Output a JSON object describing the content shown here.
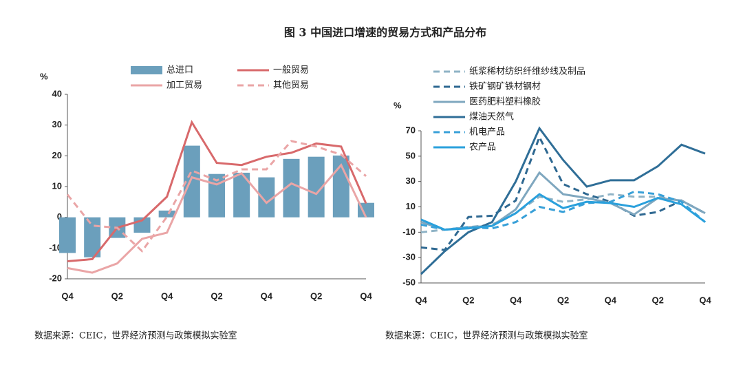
{
  "title": "图 3 中国进口增速的贸易方式和产品分布",
  "chart_data": [
    {
      "type": "bar-line",
      "unit": "%",
      "categories": [
        "Q4",
        null,
        "Q2",
        null,
        "Q4",
        null,
        "Q2",
        null,
        "Q4",
        null,
        "Q2",
        null,
        "Q4"
      ],
      "ylim": [
        -20,
        40
      ],
      "yticks": [
        -20,
        -10,
        0,
        10,
        20,
        30,
        40
      ],
      "series": [
        {
          "name": "总进口",
          "kind": "bar",
          "color": "#6b9fbc",
          "values": [
            -11.6,
            -13,
            -6.7,
            -5,
            2.2,
            23.3,
            14.1,
            14.5,
            13,
            19,
            19.7,
            20.1,
            4.7
          ]
        },
        {
          "name": "一般贸易",
          "kind": "line",
          "dash": false,
          "color": "#d8696b",
          "values": [
            -14.3,
            -13.6,
            -3.4,
            -1,
            6.7,
            30.9,
            17.7,
            17,
            19.7,
            21,
            24,
            23,
            4.5
          ]
        },
        {
          "name": "加工贸易",
          "kind": "line",
          "dash": false,
          "color": "#eaa5a6",
          "values": [
            -16.5,
            -18,
            -15,
            -7,
            -5,
            13,
            10.7,
            14.3,
            4.7,
            11,
            7.6,
            17,
            0
          ]
        },
        {
          "name": "其他贸易",
          "kind": "line",
          "dash": true,
          "color": "#eaa5a6",
          "values": [
            7.4,
            -2.7,
            -3.4,
            -11,
            0.2,
            15.2,
            12,
            15.6,
            15.6,
            24.8,
            23,
            20.4,
            13.4
          ]
        }
      ],
      "source": "数据来源：CEIC，世界经济预测与政策模拟实验室"
    },
    {
      "type": "line",
      "unit": "%",
      "categories": [
        "Q4",
        null,
        "Q2",
        null,
        "Q4",
        null,
        "Q2",
        null,
        "Q4",
        null,
        "Q2",
        null,
        "Q4"
      ],
      "ylim": [
        -50,
        70
      ],
      "yticks": [
        -50,
        -30,
        -10,
        10,
        30,
        50,
        70
      ],
      "series": [
        {
          "name": "纸浆稀材纺织纤维纱线及制品",
          "dash": true,
          "color": "#8fb3c6",
          "values": [
            -10,
            -8,
            -6,
            -4,
            5,
            18,
            14,
            16,
            20,
            18,
            18,
            15,
            5
          ]
        },
        {
          "name": "铁矿钢矿铁材钢材",
          "dash": true,
          "color": "#2e6891",
          "values": [
            -22,
            -24,
            2,
            3,
            15,
            65,
            28,
            20,
            14,
            3,
            6,
            15,
            5
          ]
        },
        {
          "name": "医药肥料塑料橡胶",
          "dash": false,
          "color": "#7fa7bf",
          "values": [
            -2,
            -8,
            -6,
            -5,
            8,
            37,
            20,
            17,
            13,
            4,
            17,
            15,
            5
          ]
        },
        {
          "name": "煤油天然气",
          "dash": false,
          "color": "#2f6e97",
          "values": [
            -43,
            -25,
            -10,
            -2,
            30,
            72,
            47,
            26,
            31,
            31,
            42,
            59,
            52
          ]
        },
        {
          "name": "机电产品",
          "dash": true,
          "color": "#38a0d8",
          "values": [
            -4,
            -8,
            -6,
            -7,
            -2,
            10,
            6,
            13,
            14,
            22,
            20,
            14,
            -2
          ]
        },
        {
          "name": "农产品",
          "dash": false,
          "color": "#2aa0dc",
          "values": [
            0,
            -8,
            -7,
            -5,
            5,
            20,
            9,
            14,
            13,
            10,
            17,
            12,
            -2
          ]
        }
      ],
      "source": "数据来源：CEIC，世界经济预测与政策模拟实验室"
    }
  ]
}
